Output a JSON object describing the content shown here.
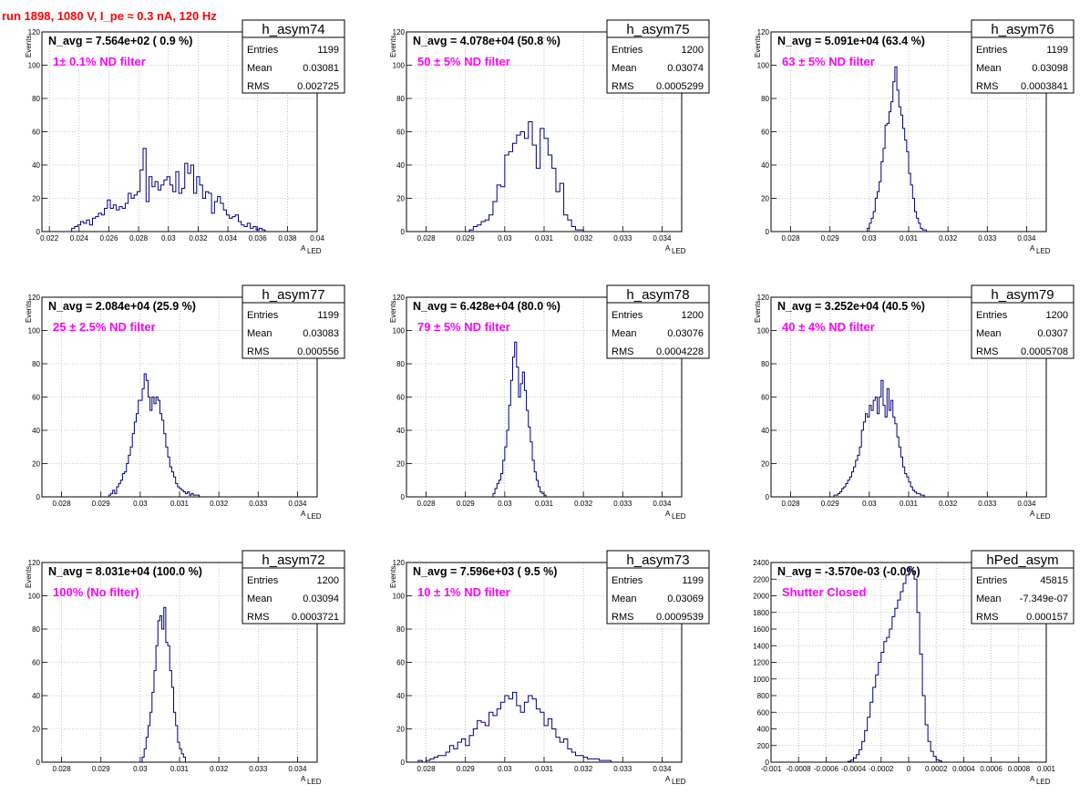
{
  "title": "run 1898,  1080 V, I_pe ≈ 0.3 nA, 120 Hz",
  "colors": {
    "histogram": "#000080",
    "annotation": "#ff00ff",
    "title": "#ff0000",
    "grid": "#999999"
  },
  "stat_labels": {
    "entries": "Entries",
    "mean": "Mean",
    "rms": "RMS"
  },
  "chart_data": [
    {
      "type": "bar",
      "name": "h_asym74",
      "xlabel": "A",
      "xlabel_sub": "LED",
      "ylabel": "Events",
      "xlim": [
        0.0215,
        0.04
      ],
      "ylim": [
        0,
        120
      ],
      "xticks": [
        0.022,
        0.024,
        0.026,
        0.028,
        0.03,
        0.032,
        0.034,
        0.036,
        0.038,
        0.04
      ],
      "xtick_labels": [
        "0.022",
        "0.024",
        "0.026",
        "0.028",
        "0.03",
        "0.032",
        "0.034",
        "0.036",
        "0.038",
        "0.04"
      ],
      "yticks": [
        0,
        20,
        40,
        60,
        80,
        100,
        120
      ],
      "ytick_labels": [
        "0",
        "20",
        "40",
        "60",
        "80",
        "100",
        "120"
      ],
      "navg": "N_avg = 7.564e+02 ( 0.9 %)",
      "filter": "1± 0.1% ND filter",
      "stats": {
        "entries": "1199",
        "mean": "0.03081",
        "rms": "0.002725"
      },
      "bin_start": 0.0235,
      "bin_width": 0.0002,
      "counts": [
        2,
        3,
        4,
        6,
        5,
        7,
        4,
        8,
        9,
        11,
        10,
        14,
        19,
        14,
        16,
        13,
        15,
        14,
        17,
        23,
        20,
        22,
        24,
        37,
        50,
        18,
        33,
        27,
        30,
        25,
        28,
        31,
        33,
        28,
        24,
        36,
        23,
        26,
        41,
        35,
        40,
        23,
        33,
        28,
        20,
        24,
        23,
        11,
        18,
        21,
        17,
        13,
        10,
        8,
        9,
        10,
        6,
        4,
        3,
        5,
        2,
        3,
        1,
        2,
        1
      ]
    },
    {
      "type": "bar",
      "name": "h_asym75",
      "xlabel": "A",
      "xlabel_sub": "LED",
      "ylabel": "Events",
      "xlim": [
        0.0275,
        0.0345
      ],
      "ylim": [
        0,
        120
      ],
      "xticks": [
        0.028,
        0.029,
        0.03,
        0.031,
        0.032,
        0.033,
        0.034
      ],
      "xtick_labels": [
        "0.028",
        "0.029",
        "0.03",
        "0.031",
        "0.032",
        "0.033",
        "0.034"
      ],
      "yticks": [
        0,
        20,
        40,
        60,
        80,
        100,
        120
      ],
      "ytick_labels": [
        "0",
        "20",
        "40",
        "60",
        "80",
        "100",
        "120"
      ],
      "navg": "N_avg = 4.078e+04 (50.8 %)",
      "filter": "50 ± 5% ND filter",
      "stats": {
        "entries": "1200",
        "mean": "0.03074",
        "rms": "0.0005299"
      },
      "bin_start": 0.0291,
      "bin_width": 0.0001,
      "counts": [
        1,
        3,
        4,
        6,
        7,
        10,
        18,
        28,
        27,
        46,
        48,
        53,
        58,
        60,
        56,
        66,
        52,
        38,
        62,
        56,
        46,
        38,
        24,
        29,
        10,
        7,
        3,
        1,
        1
      ]
    },
    {
      "type": "bar",
      "name": "h_asym76",
      "xlabel": "A",
      "xlabel_sub": "LED",
      "ylabel": "Events",
      "xlim": [
        0.0275,
        0.0345
      ],
      "ylim": [
        0,
        120
      ],
      "xticks": [
        0.028,
        0.029,
        0.03,
        0.031,
        0.032,
        0.033,
        0.034
      ],
      "xtick_labels": [
        "0.028",
        "0.029",
        "0.03",
        "0.031",
        "0.032",
        "0.033",
        "0.034"
      ],
      "yticks": [
        0,
        20,
        40,
        60,
        80,
        100,
        120
      ],
      "ytick_labels": [
        "0",
        "20",
        "40",
        "60",
        "80",
        "100",
        "120"
      ],
      "navg": "N_avg = 5.091e+04 (63.4 %)",
      "filter": "63 ± 5% ND filter",
      "stats": {
        "entries": "1199",
        "mean": "0.03098",
        "rms": "0.0003841"
      },
      "bin_start": 0.02995,
      "bin_width": 5e-05,
      "counts": [
        2,
        5,
        8,
        12,
        20,
        24,
        30,
        42,
        50,
        64,
        65,
        72,
        78,
        90,
        99,
        85,
        75,
        70,
        62,
        55,
        48,
        35,
        28,
        20,
        12,
        8,
        5,
        2,
        1,
        1
      ]
    },
    {
      "type": "bar",
      "name": "h_asym77",
      "xlabel": "A",
      "xlabel_sub": "LED",
      "ylabel": "Events",
      "xlim": [
        0.0275,
        0.0345
      ],
      "ylim": [
        0,
        120
      ],
      "xticks": [
        0.028,
        0.029,
        0.03,
        0.031,
        0.032,
        0.033,
        0.034
      ],
      "xtick_labels": [
        "0.028",
        "0.029",
        "0.03",
        "0.031",
        "0.032",
        "0.033",
        "0.034"
      ],
      "yticks": [
        0,
        20,
        40,
        60,
        80,
        100,
        120
      ],
      "ytick_labels": [
        "0",
        "20",
        "40",
        "60",
        "80",
        "100",
        "120"
      ],
      "navg": "N_avg = 2.084e+04 (25.9 %)",
      "filter": "25 ± 2.5% ND filter",
      "stats": {
        "entries": "1199",
        "mean": "0.03083",
        "rms": "0.000556"
      },
      "bin_start": 0.0292,
      "bin_width": 5e-05,
      "counts": [
        1,
        2,
        4,
        2,
        6,
        8,
        10,
        14,
        15,
        20,
        25,
        30,
        38,
        45,
        50,
        58,
        58,
        65,
        74,
        70,
        60,
        52,
        60,
        56,
        60,
        58,
        50,
        46,
        38,
        30,
        24,
        18,
        15,
        12,
        8,
        6,
        5,
        4,
        3,
        2,
        3,
        1,
        2,
        1,
        1,
        1
      ]
    },
    {
      "type": "bar",
      "name": "h_asym78",
      "xlabel": "A",
      "xlabel_sub": "LED",
      "ylabel": "Events",
      "xlim": [
        0.0275,
        0.0345
      ],
      "ylim": [
        0,
        120
      ],
      "xticks": [
        0.028,
        0.029,
        0.03,
        0.031,
        0.032,
        0.033,
        0.034
      ],
      "xtick_labels": [
        "0.028",
        "0.029",
        "0.03",
        "0.031",
        "0.032",
        "0.033",
        "0.034"
      ],
      "yticks": [
        0,
        20,
        40,
        60,
        80,
        100,
        120
      ],
      "ytick_labels": [
        "0",
        "20",
        "40",
        "60",
        "80",
        "100",
        "120"
      ],
      "navg": "N_avg = 6.428e+04 (80.0 %)",
      "filter": "79 ± 5% ND filter",
      "stats": {
        "entries": "1200",
        "mean": "0.03076",
        "rms": "0.0004228"
      },
      "bin_start": 0.0297,
      "bin_width": 5e-05,
      "counts": [
        2,
        5,
        8,
        10,
        14,
        22,
        30,
        40,
        55,
        70,
        84,
        93,
        78,
        60,
        68,
        75,
        64,
        52,
        42,
        33,
        22,
        15,
        10,
        6,
        3,
        2,
        1
      ]
    },
    {
      "type": "bar",
      "name": "h_asym79",
      "xlabel": "A",
      "xlabel_sub": "LED",
      "ylabel": "Events",
      "xlim": [
        0.0275,
        0.0345
      ],
      "ylim": [
        0,
        120
      ],
      "xticks": [
        0.028,
        0.029,
        0.03,
        0.031,
        0.032,
        0.033,
        0.034
      ],
      "xtick_labels": [
        "0.028",
        "0.029",
        "0.03",
        "0.031",
        "0.032",
        "0.033",
        "0.034"
      ],
      "yticks": [
        0,
        20,
        40,
        60,
        80,
        100,
        120
      ],
      "ytick_labels": [
        "0",
        "20",
        "40",
        "60",
        "80",
        "100",
        "120"
      ],
      "navg": "N_avg = 3.252e+04 (40.5 %)",
      "filter": "40 ± 4% ND filter",
      "stats": {
        "entries": "1200",
        "mean": "0.0307",
        "rms": "0.0005708"
      },
      "bin_start": 0.0291,
      "bin_width": 5e-05,
      "counts": [
        1,
        1,
        2,
        3,
        5,
        6,
        8,
        10,
        12,
        15,
        18,
        22,
        25,
        30,
        40,
        45,
        50,
        48,
        55,
        52,
        58,
        60,
        50,
        60,
        70,
        55,
        48,
        65,
        52,
        58,
        48,
        44,
        36,
        30,
        24,
        18,
        14,
        12,
        9,
        6,
        4,
        3,
        2,
        2,
        1,
        1
      ]
    },
    {
      "type": "bar",
      "name": "h_asym72",
      "xlabel": "A",
      "xlabel_sub": "LED",
      "ylabel": "Events",
      "xlim": [
        0.0275,
        0.0345
      ],
      "ylim": [
        0,
        120
      ],
      "xticks": [
        0.028,
        0.029,
        0.03,
        0.031,
        0.032,
        0.033,
        0.034
      ],
      "xtick_labels": [
        "0.028",
        "0.029",
        "0.03",
        "0.031",
        "0.032",
        "0.033",
        "0.034"
      ],
      "yticks": [
        0,
        20,
        40,
        60,
        80,
        100,
        120
      ],
      "ytick_labels": [
        "0",
        "20",
        "40",
        "60",
        "80",
        "100",
        "120"
      ],
      "navg": "N_avg = 8.031e+04 (100.0 %)",
      "filter": "100% (No filter)",
      "stats": {
        "entries": "1200",
        "mean": "0.03094",
        "rms": "0.0003721"
      },
      "bin_start": 0.03005,
      "bin_width": 5e-05,
      "counts": [
        3,
        8,
        15,
        22,
        30,
        42,
        55,
        70,
        85,
        88,
        80,
        93,
        72,
        70,
        55,
        45,
        30,
        22,
        12,
        8,
        5,
        3
      ]
    },
    {
      "type": "bar",
      "name": "h_asym73",
      "xlabel": "A",
      "xlabel_sub": "LED",
      "ylabel": "Events",
      "xlim": [
        0.0275,
        0.0345
      ],
      "ylim": [
        0,
        120
      ],
      "xticks": [
        0.028,
        0.029,
        0.03,
        0.031,
        0.032,
        0.033,
        0.034
      ],
      "xtick_labels": [
        "0.028",
        "0.029",
        "0.03",
        "0.031",
        "0.032",
        "0.033",
        "0.034"
      ],
      "yticks": [
        0,
        20,
        40,
        60,
        80,
        100,
        120
      ],
      "ytick_labels": [
        "0",
        "20",
        "40",
        "60",
        "80",
        "100",
        "120"
      ],
      "navg": "N_avg = 7.596e+03 ( 9.5 %)",
      "filter": "10 ± 1% ND filter",
      "stats": {
        "entries": "1199",
        "mean": "0.03069",
        "rms": "0.0009539"
      },
      "bin_start": 0.0278,
      "bin_width": 0.0001,
      "counts": [
        1,
        0,
        1,
        2,
        3,
        4,
        4,
        6,
        10,
        8,
        12,
        14,
        10,
        16,
        20,
        25,
        24,
        22,
        30,
        28,
        32,
        36,
        40,
        38,
        42,
        34,
        30,
        36,
        40,
        38,
        32,
        30,
        22,
        26,
        20,
        15,
        12,
        14,
        8,
        6,
        4,
        4,
        3,
        2,
        2,
        2,
        1,
        1,
        1
      ]
    },
    {
      "type": "bar",
      "name": "hPed_asym",
      "xlabel": "A",
      "xlabel_sub": "LED",
      "ylabel": "",
      "xlim": [
        -0.001,
        0.001
      ],
      "ylim": [
        0,
        2400
      ],
      "xticks": [
        -0.001,
        -0.0008,
        -0.0006,
        -0.0004,
        -0.0002,
        0,
        0.0002,
        0.0004,
        0.0006,
        0.0008,
        0.001
      ],
      "xtick_labels": [
        "-0.001",
        "-0.0008",
        "-0.0006",
        "-0.0004",
        "-0.0002",
        "0",
        "0.0002",
        "0.0004",
        "0.0006",
        "0.0008",
        "0.001"
      ],
      "yticks": [
        0,
        200,
        400,
        600,
        800,
        1000,
        1200,
        1400,
        1600,
        1800,
        2000,
        2200,
        2400
      ],
      "ytick_labels": [
        "0",
        "200",
        "400",
        "600",
        "800",
        "1000",
        "1200",
        "1400",
        "1600",
        "1800",
        "2000",
        "2200",
        "2400"
      ],
      "navg": "N_avg = -3.570e-03 (-0.0%)",
      "filter": "Shutter Closed",
      "stats": {
        "entries": "45815",
        "mean": "-7.349e-07",
        "rms": "0.000157"
      },
      "bin_start": -0.00044,
      "bin_width": 2e-05,
      "counts": [
        10,
        25,
        50,
        90,
        150,
        250,
        380,
        540,
        720,
        900,
        1050,
        1200,
        1320,
        1450,
        1500,
        1600,
        1750,
        1850,
        1950,
        2050,
        2150,
        2250,
        2350,
        2300,
        2200,
        1800,
        1300,
        800,
        450,
        250,
        130,
        70,
        30,
        15
      ]
    }
  ]
}
